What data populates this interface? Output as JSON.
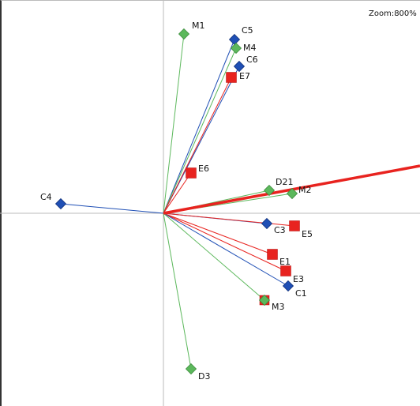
{
  "zoom_readout": "Zoom:800%",
  "colors": {
    "C": "#1f4fb5",
    "E": "#e8231f",
    "M": "#5cb85c",
    "D": "#5cb85c",
    "marker_edge_green": "#3d8c3d",
    "axis": "#bbbbbb"
  },
  "chart_data": {
    "type": "scatter",
    "title": "",
    "xlabel": "",
    "ylabel": "",
    "x_range": [
      -1.3,
      3.25
    ],
    "y_range": [
      -2.4,
      2.7
    ],
    "grid": false,
    "legend": "none",
    "origin_axes": true,
    "vectors_from_origin": true,
    "points": [
      {
        "label": "M1",
        "group": "M",
        "marker": "diamond",
        "x": 0.26,
        "y": 2.27
      },
      {
        "label": "C5",
        "group": "C",
        "marker": "diamond",
        "x": 0.9,
        "y": 2.2
      },
      {
        "label": "M4",
        "group": "M",
        "marker": "diamond",
        "x": 0.92,
        "y": 2.09
      },
      {
        "label": "C6",
        "group": "C",
        "marker": "diamond",
        "x": 0.96,
        "y": 1.86
      },
      {
        "label": "E7",
        "group": "E",
        "marker": "square",
        "x": 0.86,
        "y": 1.72
      },
      {
        "label": "E6",
        "group": "E",
        "marker": "square",
        "x": 0.35,
        "y": 0.51
      },
      {
        "label": "D21",
        "group": "D",
        "marker": "diamond",
        "x": 1.34,
        "y": 0.29
      },
      {
        "label": "M2",
        "group": "M",
        "marker": "diamond",
        "x": 1.63,
        "y": 0.25
      },
      {
        "label": "C4",
        "group": "C",
        "marker": "diamond",
        "x": -1.3,
        "y": 0.12
      },
      {
        "label": "C3",
        "group": "C",
        "marker": "diamond",
        "x": 1.31,
        "y": -0.13
      },
      {
        "label": "E5",
        "group": "E",
        "marker": "square",
        "x": 1.66,
        "y": -0.16
      },
      {
        "label": "E1",
        "group": "E",
        "marker": "square",
        "x": 1.38,
        "y": -0.52
      },
      {
        "label": "E3",
        "group": "E",
        "marker": "square",
        "x": 1.55,
        "y": -0.73
      },
      {
        "label": "C1",
        "group": "C",
        "marker": "diamond",
        "x": 1.58,
        "y": -0.92
      },
      {
        "label": "M3",
        "group": "M",
        "marker": "diamond",
        "x": 1.28,
        "y": -1.1
      },
      {
        "label": "D3",
        "group": "D",
        "marker": "diamond",
        "x": 0.35,
        "y": -1.97
      }
    ],
    "extra_square_markers": [
      {
        "group": "E",
        "x": 1.28,
        "y": -1.1
      }
    ],
    "highlight_vector": {
      "group": "E",
      "x_end": 3.25,
      "y_end": 0.6
    }
  }
}
